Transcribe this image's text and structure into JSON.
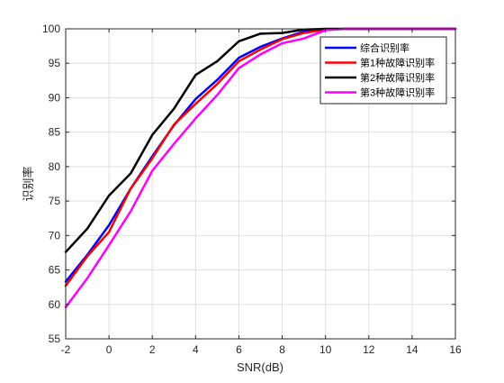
{
  "chart_data": {
    "type": "line",
    "title": "",
    "xlabel": "SNR(dB)",
    "ylabel": "识别率",
    "xlim": [
      -2,
      16
    ],
    "ylim": [
      55,
      100
    ],
    "xticks": [
      -2,
      0,
      2,
      4,
      6,
      8,
      10,
      12,
      14,
      16
    ],
    "yticks": [
      55,
      60,
      65,
      70,
      75,
      80,
      85,
      90,
      95,
      100
    ],
    "grid": true,
    "legend_position": "top-right",
    "x": [
      -2,
      -1,
      0,
      1,
      2,
      3,
      4,
      5,
      6,
      7,
      8,
      9,
      10,
      11,
      12,
      13,
      14,
      15,
      16
    ],
    "series": [
      {
        "name": "综合识别率",
        "color": "#0000ff",
        "values": [
          63.3,
          67.2,
          71.5,
          76.8,
          81.5,
          86.0,
          89.8,
          92.6,
          95.8,
          97.4,
          98.6,
          99.6,
          99.9,
          100,
          100,
          100,
          100,
          100,
          100
        ]
      },
      {
        "name": "第1种故障识别率",
        "color": "#ff0000",
        "values": [
          62.7,
          67.0,
          70.5,
          76.8,
          81.2,
          86.1,
          89.1,
          92.0,
          95.3,
          97.0,
          98.5,
          99.4,
          99.9,
          100,
          100,
          100,
          100,
          100,
          100
        ]
      },
      {
        "name": "第2种故障识别率",
        "color": "#000000",
        "values": [
          67.6,
          71.0,
          75.8,
          79.0,
          84.6,
          88.4,
          93.3,
          95.3,
          98.2,
          99.3,
          99.4,
          99.9,
          100,
          100,
          100,
          100,
          100,
          100,
          100
        ]
      },
      {
        "name": "第3种故障识别率",
        "color": "#ff00ff",
        "values": [
          59.6,
          63.8,
          68.6,
          73.5,
          79.4,
          83.3,
          87.0,
          90.4,
          94.3,
          96.3,
          97.9,
          98.6,
          99.8,
          100,
          100,
          100,
          100,
          100,
          100
        ]
      }
    ]
  }
}
